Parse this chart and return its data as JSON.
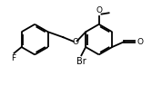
{
  "bg_color": "#ffffff",
  "line_color": "#000000",
  "text_color": "#000000",
  "line_width": 1.3,
  "font_size": 6.5,
  "figsize": [
    1.67,
    0.94
  ],
  "dpi": 100,
  "xlim": [
    0,
    9.4
  ],
  "ylim": [
    0.2,
    5.8
  ]
}
